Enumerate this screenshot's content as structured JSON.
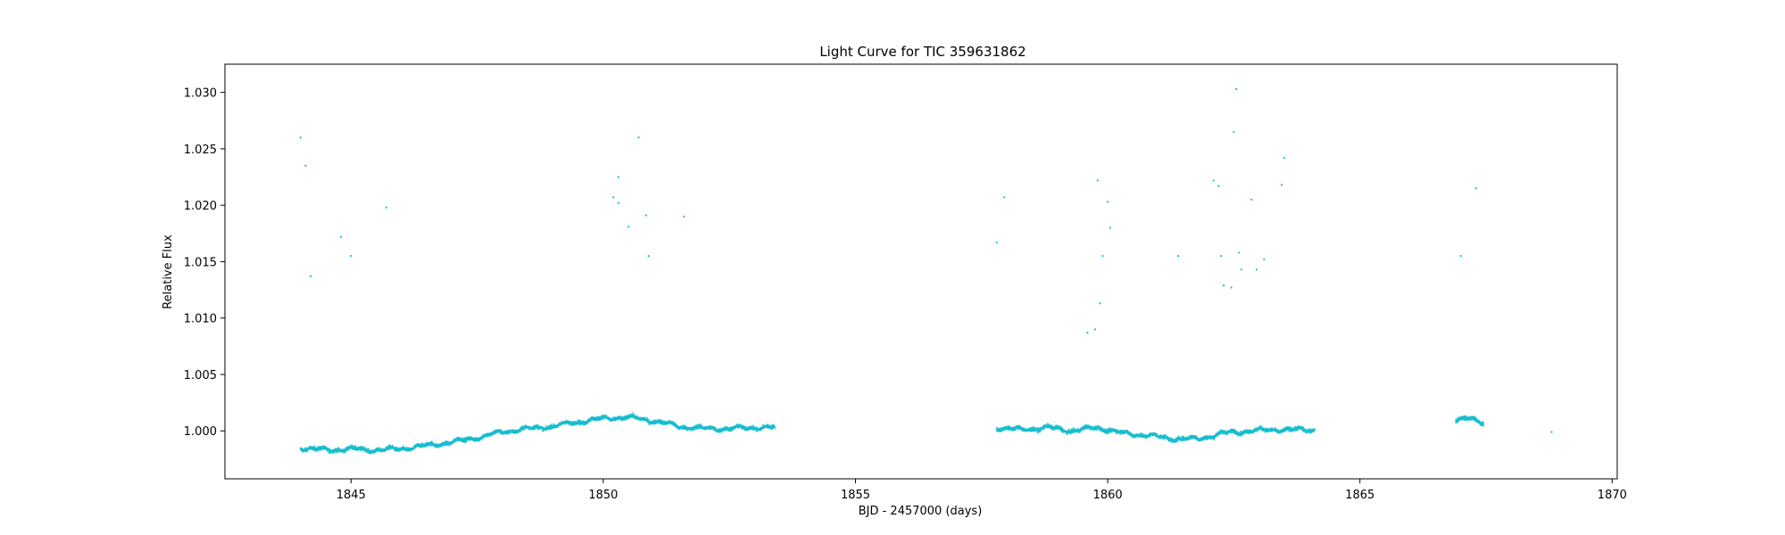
{
  "chart_data": {
    "type": "scatter",
    "title": "Light Curve for TIC 359631862",
    "xlabel": "BJD - 2457000 (days)",
    "ylabel": "Relative Flux",
    "xlim": [
      1842.5,
      1870.1
    ],
    "ylim": [
      0.99575,
      1.0325
    ],
    "xticks": [
      1845,
      1850,
      1855,
      1860,
      1865,
      1870
    ],
    "yticks": [
      1.0,
      1.005,
      1.01,
      1.015,
      1.02,
      1.025,
      1.03
    ],
    "ytick_labels": [
      "1.000",
      "1.005",
      "1.010",
      "1.015",
      "1.020",
      "1.025",
      "1.030"
    ],
    "grid": false,
    "legend": "none",
    "color": "#17becf",
    "series": [
      {
        "segments": [
          {
            "x": [
              1844.0,
              1844.5,
              1845.0,
              1845.5,
              1846.0,
              1846.5,
              1847.0,
              1847.5,
              1848.0,
              1848.5,
              1849.0,
              1849.5,
              1850.0,
              1850.5,
              1851.0,
              1851.5,
              1852.0,
              1852.5,
              1853.0,
              1853.4
            ],
            "y": [
              0.9985,
              0.9983,
              0.9984,
              0.9983,
              0.9984,
              0.9987,
              0.999,
              0.9994,
              0.9999,
              1.0002,
              1.0004,
              1.0008,
              1.0011,
              1.0012,
              1.0009,
              1.0004,
              1.0002,
              1.0002,
              1.0003,
              1.0003
            ]
          },
          {
            "x": [
              1857.8,
              1858.3,
              1858.8,
              1859.3,
              1859.8,
              1860.3,
              1860.8,
              1861.3,
              1861.8,
              1862.3,
              1862.8,
              1863.3,
              1863.8,
              1864.1
            ],
            "y": [
              1.0003,
              1.0001,
              1.0003,
              1.0,
              1.0003,
              0.9998,
              0.9996,
              0.9993,
              0.9993,
              0.9998,
              1.0,
              1.0001,
              1.0001,
              1.0001
            ]
          },
          {
            "x": [
              1866.9,
              1867.1,
              1867.3,
              1867.45
            ],
            "y": [
              1.001,
              1.0011,
              1.0009,
              1.0007
            ]
          }
        ],
        "outliers": {
          "x": [
            1844.0,
            1844.1,
            1844.2,
            1844.8,
            1845.0,
            1845.7,
            1850.2,
            1850.3,
            1850.3,
            1850.5,
            1850.7,
            1850.85,
            1850.9,
            1851.6,
            1857.8,
            1857.95,
            1859.6,
            1859.75,
            1859.8,
            1859.85,
            1859.9,
            1860.0,
            1860.05,
            1861.4,
            1862.1,
            1862.2,
            1862.25,
            1862.3,
            1862.45,
            1862.5,
            1862.55,
            1862.6,
            1862.65,
            1862.85,
            1862.95,
            1863.1,
            1863.45,
            1863.5,
            1867.0,
            1867.3,
            1868.8
          ],
          "y": [
            1.026,
            1.0235,
            1.0137,
            1.0172,
            1.0155,
            1.0198,
            1.0207,
            1.0225,
            1.0202,
            1.0181,
            1.026,
            1.0191,
            1.0155,
            1.019,
            1.0167,
            1.0207,
            1.0087,
            1.009,
            1.0222,
            1.0113,
            1.0155,
            1.0203,
            1.018,
            1.0155,
            1.0222,
            1.0217,
            1.0155,
            1.0129,
            1.0127,
            1.0265,
            1.0303,
            1.0158,
            1.0143,
            1.0205,
            1.0143,
            1.0152,
            1.0218,
            1.0242,
            1.0155,
            1.0215,
            0.9999
          ]
        }
      }
    ]
  }
}
